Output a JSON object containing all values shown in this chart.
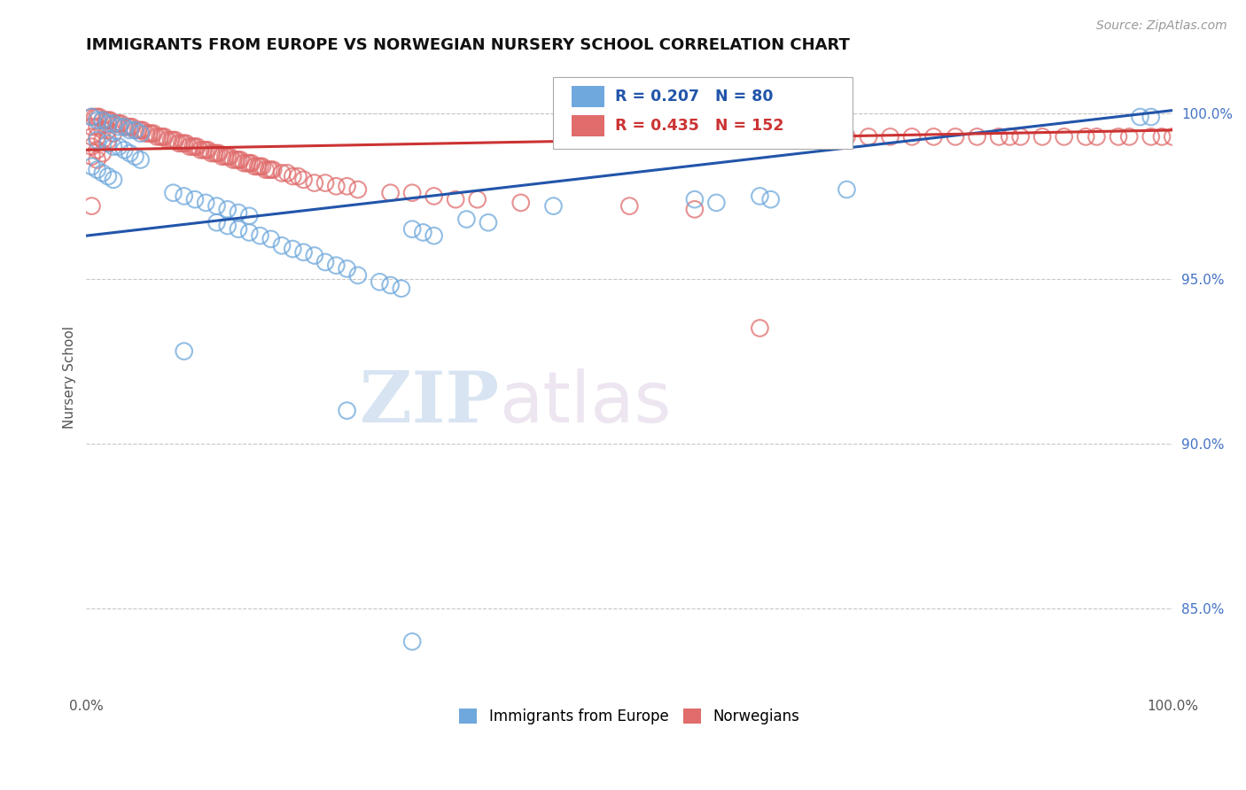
{
  "title": "IMMIGRANTS FROM EUROPE VS NORWEGIAN NURSERY SCHOOL CORRELATION CHART",
  "source_text": "Source: ZipAtlas.com",
  "ylabel": "Nursery School",
  "watermark_zip": "ZIP",
  "watermark_atlas": "atlas",
  "blue_label": "Immigrants from Europe",
  "pink_label": "Norwegians",
  "blue_R": 0.207,
  "blue_N": 80,
  "pink_R": 0.435,
  "pink_N": 152,
  "blue_color": "#6fa8dc",
  "pink_color": "#e06c6c",
  "blue_line_color": "#2255aa",
  "pink_line_color": "#cc3333",
  "xlim": [
    0.0,
    1.0
  ],
  "ylim": [
    0.825,
    1.015
  ],
  "blue_scatter_x": [
    0.005,
    0.01,
    0.015,
    0.02,
    0.025,
    0.03,
    0.035,
    0.04,
    0.045,
    0.05,
    0.01,
    0.02,
    0.025,
    0.03,
    0.035,
    0.04,
    0.045,
    0.05,
    0.005,
    0.01,
    0.015,
    0.02,
    0.025,
    0.08,
    0.09,
    0.1,
    0.11,
    0.12,
    0.13,
    0.14,
    0.15,
    0.12,
    0.13,
    0.14,
    0.15,
    0.16,
    0.17,
    0.18,
    0.19,
    0.2,
    0.21,
    0.22,
    0.23,
    0.24,
    0.25,
    0.27,
    0.28,
    0.29,
    0.3,
    0.31,
    0.32,
    0.35,
    0.37,
    0.43,
    0.56,
    0.58,
    0.62,
    0.63,
    0.7,
    0.97,
    0.98,
    0.09,
    0.24,
    0.3
  ],
  "blue_scatter_y": [
    0.999,
    0.998,
    0.998,
    0.997,
    0.997,
    0.996,
    0.996,
    0.995,
    0.995,
    0.994,
    0.992,
    0.991,
    0.99,
    0.99,
    0.989,
    0.988,
    0.987,
    0.986,
    0.984,
    0.983,
    0.982,
    0.981,
    0.98,
    0.976,
    0.975,
    0.974,
    0.973,
    0.972,
    0.971,
    0.97,
    0.969,
    0.967,
    0.966,
    0.965,
    0.964,
    0.963,
    0.962,
    0.96,
    0.959,
    0.958,
    0.957,
    0.955,
    0.954,
    0.953,
    0.951,
    0.949,
    0.948,
    0.947,
    0.965,
    0.964,
    0.963,
    0.968,
    0.967,
    0.972,
    0.974,
    0.973,
    0.975,
    0.974,
    0.977,
    0.999,
    0.999,
    0.928,
    0.91,
    0.84
  ],
  "pink_scatter_x": [
    0.005,
    0.008,
    0.01,
    0.012,
    0.015,
    0.018,
    0.02,
    0.022,
    0.025,
    0.028,
    0.03,
    0.032,
    0.035,
    0.038,
    0.04,
    0.042,
    0.045,
    0.048,
    0.05,
    0.052,
    0.055,
    0.058,
    0.06,
    0.062,
    0.065,
    0.068,
    0.07,
    0.072,
    0.075,
    0.078,
    0.08,
    0.082,
    0.085,
    0.088,
    0.09,
    0.092,
    0.095,
    0.098,
    0.1,
    0.102,
    0.105,
    0.108,
    0.11,
    0.112,
    0.115,
    0.118,
    0.12,
    0.122,
    0.125,
    0.128,
    0.13,
    0.132,
    0.135,
    0.138,
    0.14,
    0.142,
    0.145,
    0.148,
    0.15,
    0.152,
    0.155,
    0.158,
    0.16,
    0.162,
    0.165,
    0.168,
    0.17,
    0.172,
    0.18,
    0.185,
    0.19,
    0.195,
    0.2,
    0.21,
    0.22,
    0.23,
    0.24,
    0.25,
    0.28,
    0.3,
    0.32,
    0.34,
    0.36,
    0.4,
    0.5,
    0.56,
    0.6,
    0.61,
    0.62,
    0.65,
    0.68,
    0.7,
    0.72,
    0.74,
    0.76,
    0.78,
    0.8,
    0.82,
    0.84,
    0.85,
    0.86,
    0.88,
    0.9,
    0.92,
    0.93,
    0.95,
    0.96,
    0.98,
    0.99,
    1.0,
    0.005,
    0.01,
    0.015,
    0.02,
    0.025,
    0.005,
    0.01,
    0.015,
    0.02,
    0.005,
    0.01,
    0.015,
    0.005,
    0.01,
    0.62,
    0.005
  ],
  "pink_scatter_y": [
    0.999,
    0.999,
    0.999,
    0.999,
    0.998,
    0.998,
    0.998,
    0.998,
    0.997,
    0.997,
    0.997,
    0.997,
    0.996,
    0.996,
    0.996,
    0.996,
    0.995,
    0.995,
    0.995,
    0.995,
    0.994,
    0.994,
    0.994,
    0.994,
    0.993,
    0.993,
    0.993,
    0.993,
    0.992,
    0.992,
    0.992,
    0.992,
    0.991,
    0.991,
    0.991,
    0.991,
    0.99,
    0.99,
    0.99,
    0.99,
    0.989,
    0.989,
    0.989,
    0.989,
    0.988,
    0.988,
    0.988,
    0.988,
    0.987,
    0.987,
    0.987,
    0.987,
    0.986,
    0.986,
    0.986,
    0.986,
    0.985,
    0.985,
    0.985,
    0.985,
    0.984,
    0.984,
    0.984,
    0.984,
    0.983,
    0.983,
    0.983,
    0.983,
    0.982,
    0.982,
    0.981,
    0.981,
    0.98,
    0.979,
    0.979,
    0.978,
    0.978,
    0.977,
    0.976,
    0.976,
    0.975,
    0.974,
    0.974,
    0.973,
    0.972,
    0.971,
    0.992,
    0.992,
    0.992,
    0.992,
    0.992,
    0.993,
    0.993,
    0.993,
    0.993,
    0.993,
    0.993,
    0.993,
    0.993,
    0.993,
    0.993,
    0.993,
    0.993,
    0.993,
    0.993,
    0.993,
    0.993,
    0.993,
    0.993,
    0.993,
    0.996,
    0.996,
    0.995,
    0.995,
    0.994,
    0.993,
    0.993,
    0.992,
    0.992,
    0.99,
    0.989,
    0.988,
    0.987,
    0.986,
    0.935,
    0.972
  ]
}
